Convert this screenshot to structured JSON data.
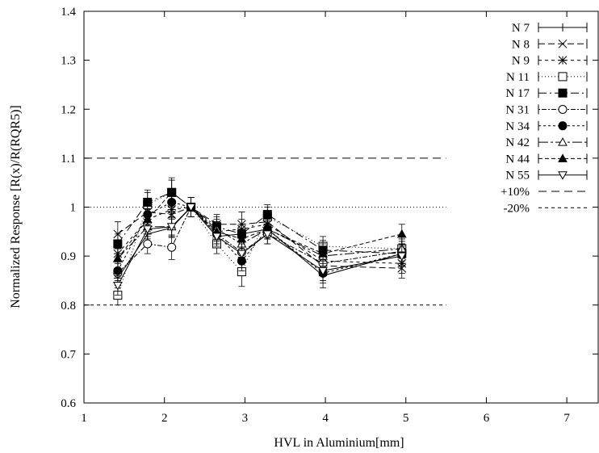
{
  "chart_data": {
    "type": "line",
    "title": "",
    "xlabel": "HVL in Aluminium[mm]",
    "ylabel": "Normalized Response [R(x)/R(RQR5)]",
    "xlim": [
      1,
      7.4
    ],
    "ylim": [
      0.6,
      1.4
    ],
    "xticks": [
      1,
      2,
      3,
      4,
      5,
      6,
      7
    ],
    "yticks": [
      0.6,
      0.7,
      0.8,
      0.9,
      1,
      1.1,
      1.2,
      1.3,
      1.4
    ],
    "xtick_labels": [
      "1",
      "2",
      "3",
      "4",
      "5",
      "6",
      "7"
    ],
    "ytick_labels": [
      "0.6",
      "0.7",
      "0.8",
      "0.9",
      "1",
      "1.1",
      "1.2",
      "1.3",
      "1.4"
    ],
    "grid": false,
    "legend_position": "top-right",
    "x": [
      1.42,
      1.79,
      2.09,
      2.33,
      2.65,
      2.96,
      3.28,
      3.97,
      4.95
    ],
    "series": [
      {
        "name": "N 7",
        "marker": "plus",
        "dash": "",
        "values": [
          0.855,
          0.945,
          0.958,
          1.0,
          0.94,
          0.945,
          0.955,
          0.86,
          0.905
        ],
        "errors": [
          0.02,
          0.02,
          0.02,
          0.02,
          0.02,
          0.02,
          0.02,
          0.025,
          0.02
        ]
      },
      {
        "name": "N 8",
        "marker": "x",
        "dash": "8,4",
        "values": [
          0.945,
          0.99,
          0.985,
          1.0,
          0.965,
          0.965,
          0.97,
          0.88,
          0.875
        ],
        "errors": [
          0.025,
          0.025,
          0.025,
          0.02,
          0.02,
          0.025,
          0.02,
          0.02,
          0.02
        ]
      },
      {
        "name": "N 9",
        "marker": "star",
        "dash": "4,4",
        "values": [
          0.905,
          0.975,
          0.995,
          1.0,
          0.95,
          0.955,
          0.965,
          0.89,
          0.885
        ],
        "errors": [
          0.02,
          0.025,
          0.02,
          0.02,
          0.02,
          0.02,
          0.02,
          0.02,
          0.02
        ]
      },
      {
        "name": "N 11",
        "marker": "square-open",
        "dash": "1,3",
        "values": [
          0.82,
          1.005,
          1.03,
          1.0,
          0.925,
          0.868,
          0.98,
          0.92,
          0.915
        ],
        "errors": [
          0.02,
          0.025,
          0.03,
          0.02,
          0.02,
          0.03,
          0.02,
          0.02,
          0.02
        ]
      },
      {
        "name": "N 17",
        "marker": "square-filled",
        "dash": "10,4,2,4",
        "values": [
          0.925,
          1.01,
          1.03,
          1.0,
          0.96,
          0.945,
          0.985,
          0.912,
          0.905
        ],
        "errors": [
          0.02,
          0.025,
          0.025,
          0.02,
          0.02,
          0.02,
          0.02,
          0.02,
          0.02
        ]
      },
      {
        "name": "N 31",
        "marker": "circle-open",
        "dash": "2,2,6,2",
        "values": [
          0.865,
          0.925,
          0.918,
          1.0,
          0.945,
          0.908,
          0.945,
          0.885,
          0.91
        ],
        "errors": [
          0.02,
          0.02,
          0.025,
          0.02,
          0.02,
          0.02,
          0.02,
          0.02,
          0.02
        ]
      },
      {
        "name": "N 34",
        "marker": "circle-filled",
        "dash": "3,3",
        "values": [
          0.87,
          0.985,
          1.01,
          1.0,
          0.945,
          0.89,
          0.955,
          0.865,
          0.905
        ],
        "errors": [
          0.02,
          0.02,
          0.02,
          0.02,
          0.02,
          0.02,
          0.02,
          0.02,
          0.02
        ]
      },
      {
        "name": "N 42",
        "marker": "triangle-up-open",
        "dash": "12,3,3,3",
        "values": [
          0.895,
          0.96,
          0.96,
          1.0,
          0.955,
          0.925,
          0.955,
          0.9,
          0.915
        ],
        "errors": [
          0.02,
          0.02,
          0.02,
          0.02,
          0.02,
          0.02,
          0.02,
          0.02,
          0.02
        ]
      },
      {
        "name": "N 44",
        "marker": "triangle-up-filled",
        "dash": "5,3",
        "values": [
          0.895,
          0.975,
          1.03,
          1.0,
          0.95,
          0.935,
          0.955,
          0.905,
          0.945
        ],
        "errors": [
          0.02,
          0.02,
          0.025,
          0.02,
          0.02,
          0.02,
          0.02,
          0.02,
          0.02
        ]
      },
      {
        "name": "N 55",
        "marker": "triangle-down-open",
        "dash": "",
        "values": [
          0.84,
          0.955,
          0.96,
          1.0,
          0.94,
          0.905,
          0.945,
          0.87,
          0.9
        ],
        "errors": [
          0.02,
          0.02,
          0.02,
          0.02,
          0.02,
          0.02,
          0.02,
          0.02,
          0.02
        ]
      }
    ],
    "reference_lines": [
      {
        "name": "+10%",
        "y": 1.1,
        "dash": "10,6",
        "x_end": 5.5
      },
      {
        "name": "-20%",
        "y": 0.8,
        "dash": "4,4",
        "x_end": 5.5
      },
      {
        "name": "",
        "y": 1.0,
        "dash": "1,3",
        "x_end": 5.5
      }
    ]
  }
}
